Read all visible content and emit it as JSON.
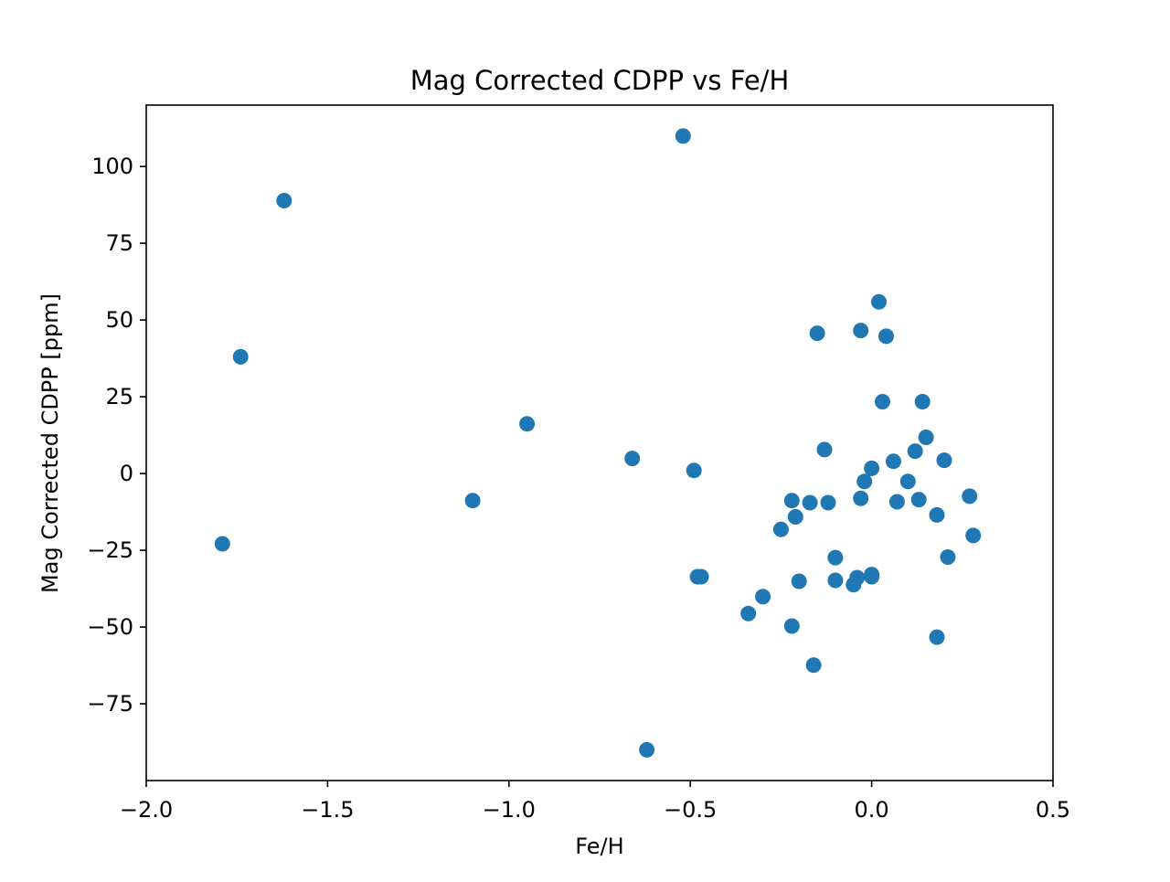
{
  "chart_data": {
    "type": "scatter",
    "title": "Mag Corrected CDPP vs Fe/H",
    "xlabel": "Fe/H",
    "ylabel": "Mag Corrected CDPP [ppm]",
    "xlim": [
      -2.0,
      0.5
    ],
    "ylim": [
      -100,
      120
    ],
    "x_ticks": [
      -2.0,
      -1.5,
      -1.0,
      -0.5,
      0.0,
      0.5
    ],
    "x_tick_labels": [
      "−2.0",
      "−1.5",
      "−1.0",
      "−0.5",
      "0.0",
      "0.5"
    ],
    "y_ticks": [
      -75,
      -50,
      -25,
      0,
      25,
      50,
      75,
      100
    ],
    "y_tick_labels": [
      "−75",
      "−50",
      "−25",
      "0",
      "25",
      "50",
      "75",
      "100"
    ],
    "grid": false,
    "marker_color": "#1f77b4",
    "points": [
      {
        "x": -1.79,
        "y": -22.9
      },
      {
        "x": -1.74,
        "y": 38.0
      },
      {
        "x": -1.62,
        "y": 88.9
      },
      {
        "x": -1.1,
        "y": -8.8
      },
      {
        "x": -0.95,
        "y": 16.2
      },
      {
        "x": -0.66,
        "y": 4.9
      },
      {
        "x": -0.62,
        "y": -90.0
      },
      {
        "x": -0.52,
        "y": 109.9
      },
      {
        "x": -0.49,
        "y": 1.0
      },
      {
        "x": -0.48,
        "y": -33.6
      },
      {
        "x": -0.47,
        "y": -33.6
      },
      {
        "x": -0.34,
        "y": -45.6
      },
      {
        "x": -0.3,
        "y": -40.1
      },
      {
        "x": -0.25,
        "y": -18.2
      },
      {
        "x": -0.22,
        "y": -8.8
      },
      {
        "x": -0.22,
        "y": -49.7
      },
      {
        "x": -0.21,
        "y": -14.1
      },
      {
        "x": -0.2,
        "y": -35.1
      },
      {
        "x": -0.17,
        "y": -9.5
      },
      {
        "x": -0.16,
        "y": -62.4
      },
      {
        "x": -0.15,
        "y": 45.7
      },
      {
        "x": -0.13,
        "y": 7.8
      },
      {
        "x": -0.12,
        "y": -9.5
      },
      {
        "x": -0.1,
        "y": -27.4
      },
      {
        "x": -0.1,
        "y": -34.8
      },
      {
        "x": -0.05,
        "y": -36.2
      },
      {
        "x": -0.04,
        "y": -33.9
      },
      {
        "x": -0.03,
        "y": -8.1
      },
      {
        "x": -0.03,
        "y": 46.6
      },
      {
        "x": -0.02,
        "y": -2.6
      },
      {
        "x": 0.0,
        "y": -33.6
      },
      {
        "x": 0.0,
        "y": -32.9
      },
      {
        "x": 0.0,
        "y": 1.7
      },
      {
        "x": 0.02,
        "y": 55.9
      },
      {
        "x": 0.03,
        "y": 23.4
      },
      {
        "x": 0.04,
        "y": 44.7
      },
      {
        "x": 0.06,
        "y": 4.0
      },
      {
        "x": 0.07,
        "y": -9.2
      },
      {
        "x": 0.1,
        "y": -2.6
      },
      {
        "x": 0.12,
        "y": 7.3
      },
      {
        "x": 0.13,
        "y": -8.5
      },
      {
        "x": 0.14,
        "y": 23.4
      },
      {
        "x": 0.15,
        "y": 11.8
      },
      {
        "x": 0.18,
        "y": -13.5
      },
      {
        "x": 0.18,
        "y": -53.3
      },
      {
        "x": 0.2,
        "y": 4.3
      },
      {
        "x": 0.21,
        "y": -27.2
      },
      {
        "x": 0.27,
        "y": -7.4
      },
      {
        "x": 0.28,
        "y": -20.2
      }
    ]
  }
}
